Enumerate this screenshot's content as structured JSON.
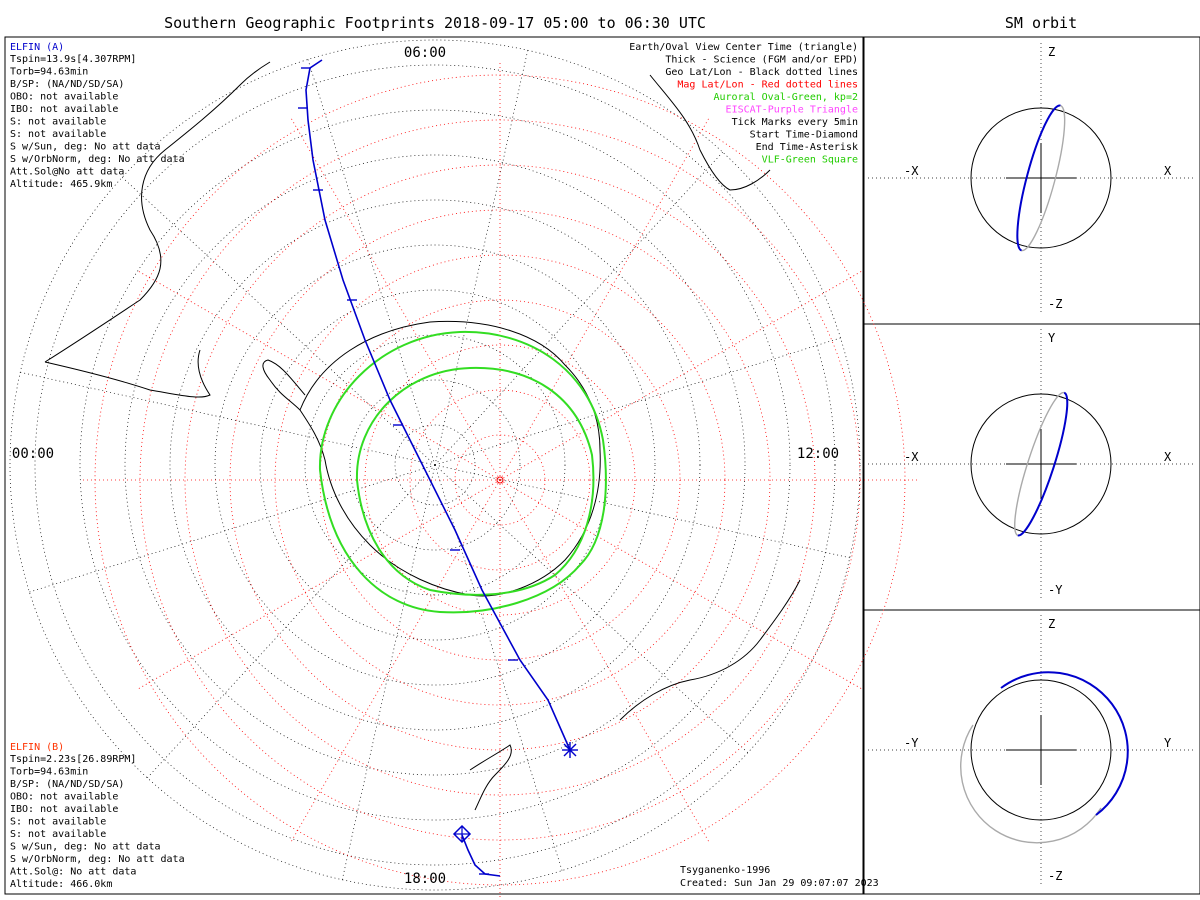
{
  "title": "Southern Geographic Footprints 2018-09-17 05:00 to 06:30 UTC",
  "orbit_panel_title": "SM orbit",
  "hour_labels": {
    "top": "06:00",
    "left": "00:00",
    "right": "12:00",
    "bottom": "18:00"
  },
  "elfin_a": {
    "name": "ELFIN (A)",
    "color": "#0000cc",
    "lines": [
      "Tspin=13.9s[4.307RPM]",
      "Torb=94.63min",
      "B/SP: (NA/ND/SD/SA)",
      "OBO: not available",
      "IBO: not available",
      "S: not available",
      "S: not available",
      "S w/Sun, deg: No att data",
      "S w/OrbNorm, deg: No att data",
      "Att.Sol@No att data",
      "Altitude: 465.9km"
    ]
  },
  "elfin_b": {
    "name": "ELFIN (B)",
    "color": "#ff3300",
    "lines": [
      "Tspin=2.23s[26.89RPM]",
      "Torb=94.63min",
      "B/SP: (NA/ND/SD/SA)",
      "OBO: not available",
      "IBO: not available",
      "S: not available",
      "S: not available",
      "S w/Sun, deg: No att data",
      "S w/OrbNorm, deg: No att data",
      "Att.Sol@: No att data",
      "Altitude: 466.0km"
    ]
  },
  "legend": [
    {
      "text": "Earth/Oval View Center Time (triangle)",
      "color": "#000000"
    },
    {
      "text": "Thick - Science (FGM and/or EPD)",
      "color": "#000000"
    },
    {
      "text": "Geo Lat/Lon - Black dotted lines",
      "color": "#000000"
    },
    {
      "text": "Mag Lat/Lon - Red dotted lines",
      "color": "#ff0000"
    },
    {
      "text": "Auroral Oval-Green, kp=2",
      "color": "#22cc00"
    },
    {
      "text": "EISCAT-Purple Triangle",
      "color": "#ff44ff"
    },
    {
      "text": "Tick Marks every 5min",
      "color": "#000000"
    },
    {
      "text": "Start Time-Diamond",
      "color": "#000000"
    },
    {
      "text": "End Time-Asterisk",
      "color": "#000000"
    },
    {
      "text": "VLF-Green Square",
      "color": "#22cc00"
    }
  ],
  "footer": {
    "model": "Tsyganenko-1996",
    "created": "Created: Sun Jan 29 09:07:07 2023"
  },
  "orbit_panels": [
    {
      "top": "Z",
      "bottom": "-Z",
      "left": "-X",
      "right": "X"
    },
    {
      "top": "Y",
      "bottom": "-Y",
      "left": "-X",
      "right": "X"
    },
    {
      "top": "Z",
      "bottom": "-Z",
      "left": "-Y",
      "right": "Y"
    }
  ],
  "colors": {
    "track": "#0000cc",
    "oval": "#33dd22",
    "mag_grid": "#ff0000",
    "geo_grid": "#000000",
    "orbit_shadow": "#aaaaaa"
  }
}
